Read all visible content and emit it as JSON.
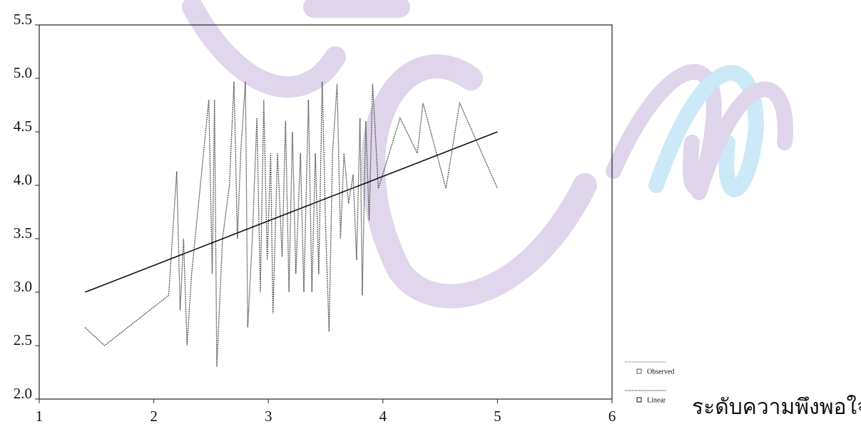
{
  "chart_data": {
    "type": "line",
    "x_label": "ระดับความพึงพอใจ",
    "series": [
      {
        "name": "Observed",
        "color": "#555555",
        "x": [
          1.4,
          1.57,
          2.13,
          2.2,
          2.23,
          2.26,
          2.29,
          2.33,
          2.48,
          2.51,
          2.53,
          2.55,
          2.6,
          2.66,
          2.7,
          2.73,
          2.76,
          2.8,
          2.82,
          2.86,
          2.9,
          2.93,
          2.96,
          2.99,
          3.02,
          3.04,
          3.08,
          3.12,
          3.15,
          3.18,
          3.21,
          3.24,
          3.28,
          3.31,
          3.35,
          3.38,
          3.41,
          3.44,
          3.47,
          3.5,
          3.53,
          3.56,
          3.6,
          3.63,
          3.66,
          3.7,
          3.74,
          3.77,
          3.8,
          3.82,
          3.85,
          3.88,
          3.91,
          3.96,
          4.15,
          4.3,
          4.35,
          4.55,
          4.67,
          5.0
        ],
        "values": [
          2.67,
          2.5,
          2.97,
          4.13,
          2.83,
          3.5,
          2.5,
          3.17,
          4.8,
          3.17,
          4.8,
          2.3,
          3.5,
          4.0,
          4.97,
          3.5,
          4.33,
          4.97,
          2.67,
          3.5,
          4.63,
          3.0,
          4.8,
          3.3,
          4.3,
          2.8,
          4.3,
          3.33,
          4.6,
          3.0,
          4.5,
          3.17,
          4.3,
          3.0,
          4.8,
          3.0,
          4.3,
          3.17,
          4.97,
          3.6,
          2.63,
          4.3,
          4.95,
          3.5,
          4.3,
          3.83,
          4.1,
          3.3,
          4.63,
          2.97,
          4.6,
          3.67,
          4.95,
          3.97,
          4.63,
          4.3,
          4.77,
          3.97,
          4.77,
          3.97
        ]
      },
      {
        "name": "Linear",
        "color": "#111111",
        "x": [
          1.4,
          5.0
        ],
        "values": [
          3.0,
          4.5
        ]
      }
    ],
    "xlim": [
      1,
      6
    ],
    "xticks": [
      1,
      2,
      3,
      4,
      5,
      6
    ],
    "ylim": [
      2.0,
      5.5
    ],
    "yticks": [
      {
        "value": 2.0,
        "label": "2.0"
      },
      {
        "value": 2.5,
        "label": "2.5"
      },
      {
        "value": 3.0,
        "label": "3.0"
      },
      {
        "value": 3.5,
        "label": "3.5"
      },
      {
        "value": 4.0,
        "label": "4.0"
      },
      {
        "value": 4.5,
        "label": "4.5"
      },
      {
        "value": 5.0,
        "label": "5.0"
      },
      {
        "value": 5.5,
        "label": "5.5"
      }
    ],
    "grid": false
  }
}
